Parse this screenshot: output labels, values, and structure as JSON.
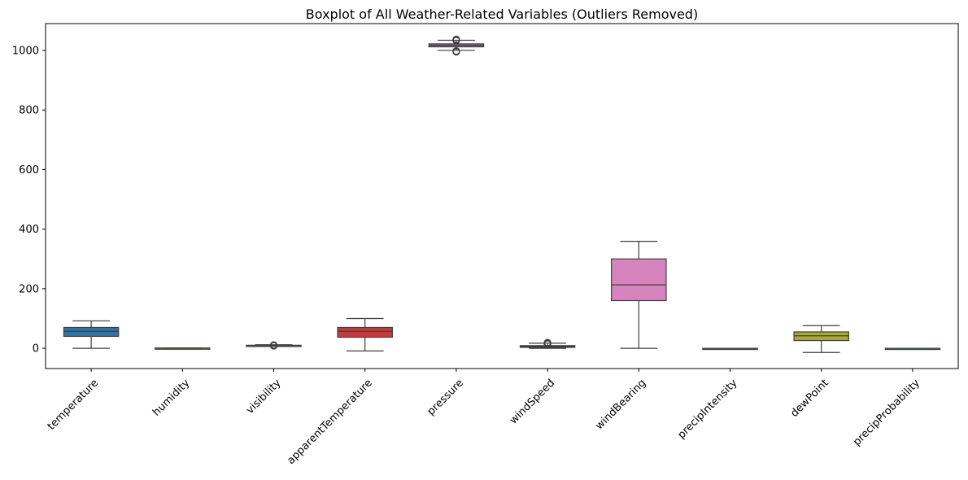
{
  "chart_data": {
    "type": "boxplot",
    "title": "Boxplot of All Weather-Related Variables (Outliers Removed)",
    "xlabel": "",
    "ylabel": "",
    "ylim": [
      -68,
      1090
    ],
    "yticks": [
      0,
      200,
      400,
      600,
      800,
      1000
    ],
    "grid": false,
    "legend": "none",
    "categories": [
      "temperature",
      "humidity",
      "visibility",
      "apparentTemperature",
      "pressure",
      "windSpeed",
      "windBearing",
      "precipIntensity",
      "dewPoint",
      "precipProbability"
    ],
    "boxes": [
      {
        "category": "temperature",
        "whisker_low": 0,
        "q1": 40,
        "median": 57,
        "q3": 70,
        "whisker_high": 92,
        "outliers": [],
        "color": "#3274a1"
      },
      {
        "category": "humidity",
        "whisker_low": 0.2,
        "q1": 0.6,
        "median": 0.75,
        "q3": 0.85,
        "whisker_high": 1.0,
        "outliers": [],
        "color": "#e1812c"
      },
      {
        "category": "visibility",
        "whisker_low": 8,
        "q1": 10,
        "median": 10,
        "q3": 10,
        "whisker_high": 12,
        "outliers": [
          8,
          9,
          10,
          11
        ],
        "color": "#3a923a"
      },
      {
        "category": "apparentTemperature",
        "whisker_low": -9,
        "q1": 37,
        "median": 57,
        "q3": 70,
        "whisker_high": 100,
        "outliers": [],
        "color": "#c03d3e"
      },
      {
        "category": "pressure",
        "whisker_low": 1000,
        "q1": 1012,
        "median": 1017,
        "q3": 1022,
        "whisker_high": 1034,
        "outliers": [
          995,
          996,
          997,
          998,
          1033,
          1035,
          1036,
          1037
        ],
        "color": "#9372b2"
      },
      {
        "category": "windSpeed",
        "whisker_low": 0,
        "q1": 3,
        "median": 6,
        "q3": 9,
        "whisker_high": 17,
        "outliers": [
          14,
          15,
          16,
          17,
          18,
          19
        ],
        "color": "#845b53"
      },
      {
        "category": "windBearing",
        "whisker_low": 0,
        "q1": 160,
        "median": 213,
        "q3": 300,
        "whisker_high": 359,
        "outliers": [],
        "color": "#d684bd"
      },
      {
        "category": "precipIntensity",
        "whisker_low": 0,
        "q1": 0,
        "median": 0,
        "q3": 0,
        "whisker_high": 0,
        "outliers": [],
        "color": "#7f7f7f"
      },
      {
        "category": "dewPoint",
        "whisker_low": -14,
        "q1": 26,
        "median": 42,
        "q3": 55,
        "whisker_high": 76,
        "outliers": [],
        "color": "#a9aa35"
      },
      {
        "category": "precipProbability",
        "whisker_low": 0,
        "q1": 0,
        "median": 0,
        "q3": 0,
        "whisker_high": 0,
        "outliers": [],
        "color": "#2ebece"
      }
    ]
  }
}
